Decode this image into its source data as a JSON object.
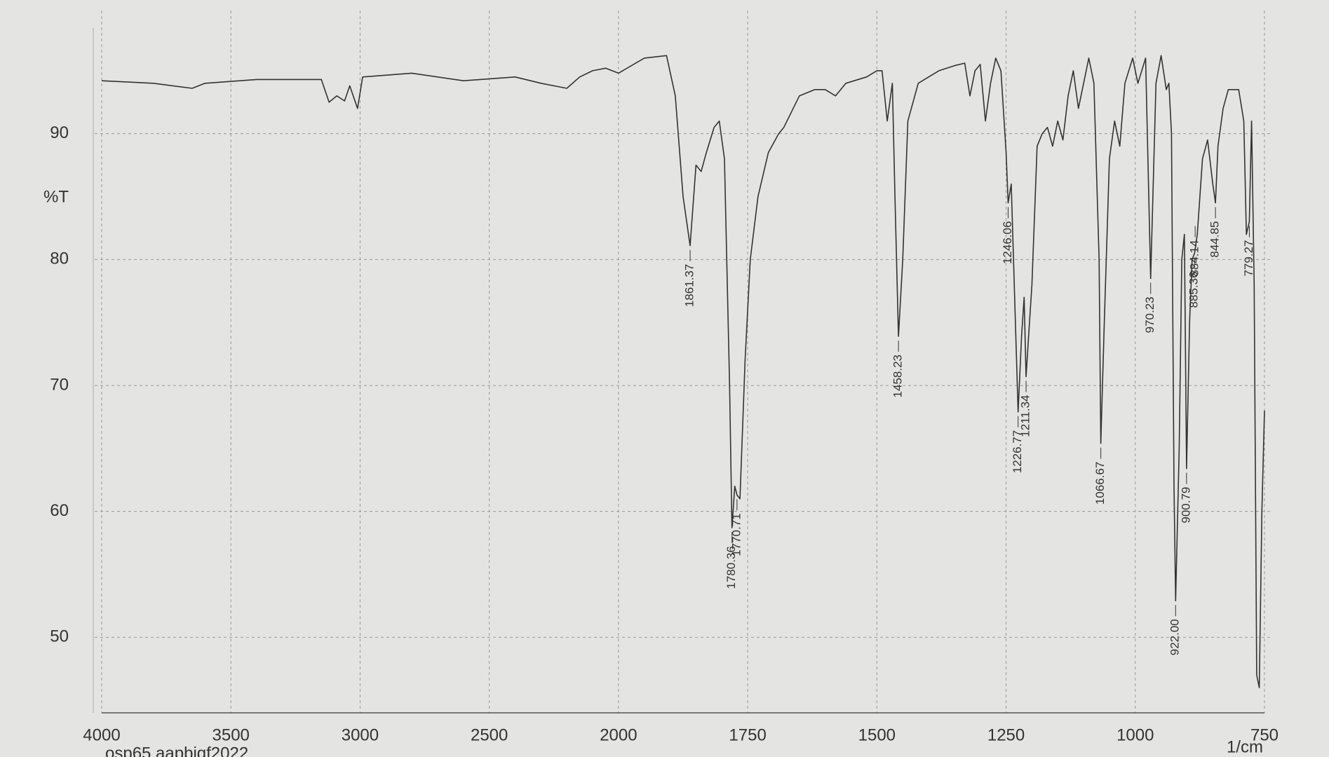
{
  "chart_data": {
    "type": "line",
    "y_label": "%T",
    "x_label": "1/cm",
    "footer": "osp65 aapbiqf2022",
    "xlim": [
      4000,
      750
    ],
    "ylim": [
      44,
      99
    ],
    "xticks": [
      4000,
      3500,
      3000,
      2500,
      2000,
      1750,
      1500,
      1250,
      1000,
      750
    ],
    "yticks": [
      50,
      60,
      70,
      80,
      90
    ],
    "grid": true,
    "series": [
      {
        "color": "#333333",
        "x": [
          4000,
          3800,
          3650,
          3600,
          3400,
          3150,
          3120,
          3090,
          3060,
          3040,
          3010,
          2990,
          2800,
          2600,
          2400,
          2300,
          2200,
          2150,
          2100,
          2050,
          2000,
          1950,
          1907,
          1890,
          1875,
          1861.37,
          1850,
          1840,
          1830,
          1815,
          1805,
          1795,
          1785,
          1780.36,
          1775,
          1770.71,
          1765,
          1755,
          1745,
          1730,
          1710,
          1690,
          1680,
          1650,
          1620,
          1600,
          1580,
          1560,
          1520,
          1500,
          1490,
          1480,
          1470,
          1465,
          1458.23,
          1450,
          1440,
          1420,
          1380,
          1350,
          1330,
          1320,
          1310,
          1300,
          1290,
          1280,
          1270,
          1260,
          1250,
          1246.06,
          1240,
          1226.77,
          1220,
          1215,
          1211.34,
          1200,
          1190,
          1180,
          1170,
          1160,
          1150,
          1140,
          1130,
          1120,
          1110,
          1100,
          1090,
          1080,
          1070,
          1066.67,
          1060,
          1050,
          1040,
          1030,
          1020,
          1005,
          995,
          980,
          970.23,
          960,
          950,
          940,
          935,
          930,
          925,
          922,
          915,
          910,
          905,
          900.79,
          895,
          890,
          885.36,
          880,
          870,
          860,
          850,
          844.85,
          840,
          830,
          820,
          810,
          800,
          790,
          785,
          779.27,
          775,
          770,
          765,
          760,
          755,
          750
        ],
        "values": [
          94.2,
          94.0,
          93.6,
          94.0,
          94.3,
          94.3,
          92.5,
          93.0,
          92.6,
          93.8,
          92.0,
          94.5,
          94.8,
          94.2,
          94.5,
          94.0,
          93.6,
          94.5,
          95.0,
          95.2,
          94.8,
          96.0,
          96.2,
          93,
          85,
          81.1,
          87.5,
          87,
          88.5,
          90.5,
          91,
          88,
          70,
          58.7,
          62,
          61.3,
          61,
          72,
          80,
          85,
          88.5,
          90,
          90.5,
          93,
          93.5,
          93.5,
          93,
          94,
          94.5,
          95,
          95,
          91,
          94,
          85,
          73.9,
          80,
          91,
          94,
          95,
          95.4,
          95.6,
          93,
          95,
          95.5,
          91,
          94,
          96,
          95,
          88.5,
          84.5,
          86,
          67.9,
          74,
          77,
          70.7,
          78,
          89,
          90,
          90.5,
          89,
          91,
          89.5,
          93,
          95,
          92,
          94,
          96,
          94,
          80,
          65.4,
          75,
          88,
          91,
          89,
          94,
          96,
          94,
          96,
          78.5,
          94,
          96.2,
          93.5,
          94,
          90,
          62,
          52.9,
          65,
          80,
          82,
          63.4,
          75,
          80,
          80.5,
          82,
          88,
          89.5,
          86,
          84.5,
          89,
          92,
          93.5,
          93.5,
          93.5,
          91,
          82,
          83,
          91,
          78,
          47,
          46,
          60,
          68
        ]
      }
    ],
    "annotations": [
      {
        "x": 1861.37,
        "y": 81.1,
        "label": "1861.37"
      },
      {
        "x": 1780.36,
        "y": 58.7,
        "label": "1780.36"
      },
      {
        "x": 1770.71,
        "y": 61.3,
        "label": "1770.71"
      },
      {
        "x": 1458.23,
        "y": 73.9,
        "label": "1458.23"
      },
      {
        "x": 1246.06,
        "y": 84.5,
        "label": "1246.06"
      },
      {
        "x": 1226.77,
        "y": 67.9,
        "label": "1226.77"
      },
      {
        "x": 1211.34,
        "y": 70.7,
        "label": "1211.34"
      },
      {
        "x": 1066.67,
        "y": 65.4,
        "label": "1066.67"
      },
      {
        "x": 970.23,
        "y": 78.5,
        "label": "970.23"
      },
      {
        "x": 922,
        "y": 52.9,
        "label": "922.00"
      },
      {
        "x": 900.79,
        "y": 63.4,
        "label": "900.79"
      },
      {
        "x": 885.36,
        "y": 80.5,
        "label": "885.36"
      },
      {
        "x": 884.14,
        "y": 83,
        "label": "884.14"
      },
      {
        "x": 844.85,
        "y": 84.5,
        "label": "844.85"
      },
      {
        "x": 779.27,
        "y": 83,
        "label": "779.27"
      }
    ]
  }
}
